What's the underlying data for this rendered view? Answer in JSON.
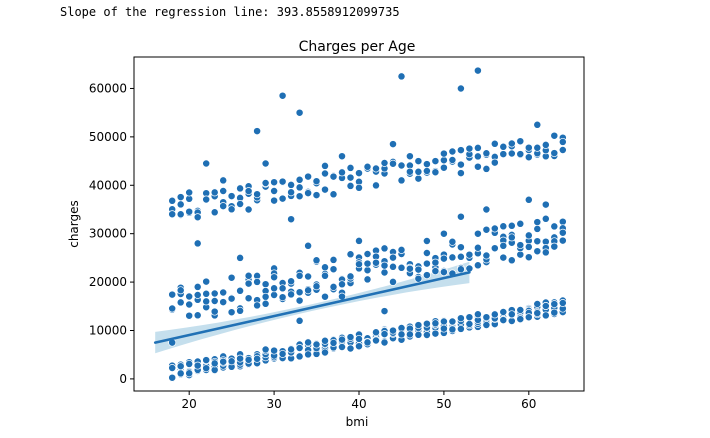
{
  "output": {
    "line": "Slope of the regression line: 393.8558912099735"
  },
  "chart_data": {
    "type": "scatter",
    "title": "Charges per Age",
    "xlabel": "bmi",
    "ylabel": "charges",
    "xlim": [
      13.5,
      66.5
    ],
    "ylim": [
      -2500,
      66500
    ],
    "x_ticks": [
      20,
      30,
      40,
      50,
      60
    ],
    "y_ticks": [
      0,
      10000,
      20000,
      30000,
      40000,
      50000,
      60000
    ],
    "grid": false,
    "colors": {
      "points": "#1f6fb4",
      "point_edge": "#ffffff",
      "line": "#2171b5",
      "ci": "#9ecae1"
    },
    "regression": {
      "slope": 393.8558912099735,
      "x_range": [
        16,
        53
      ],
      "y_start": 7500,
      "y_end": 22000,
      "ci_halfwidth_center": 700,
      "ci_halfwidth_end": 2200
    },
    "bands": [
      {
        "name": "low",
        "x_start": 18,
        "x_end": 64,
        "y_start": 1500,
        "y_end": 15000,
        "spread": 1400
      },
      {
        "name": "mid",
        "x_start": 18,
        "x_end": 64,
        "y_start": 15000,
        "y_end": 30000,
        "spread": 4000
      },
      {
        "name": "high",
        "x_start": 18,
        "x_end": 64,
        "y_start": 35000,
        "y_end": 48500,
        "spread": 2500
      }
    ],
    "outliers": [
      [
        18,
        7500
      ],
      [
        28,
        51200
      ],
      [
        31,
        58500
      ],
      [
        33,
        55000
      ],
      [
        45,
        62500
      ],
      [
        52,
        60000
      ],
      [
        54,
        63700
      ],
      [
        61,
        52500
      ],
      [
        19,
        34000
      ],
      [
        20,
        38500
      ],
      [
        22,
        44500
      ],
      [
        24,
        41000
      ],
      [
        29,
        44500
      ],
      [
        27,
        35000
      ],
      [
        32,
        33000
      ],
      [
        36,
        44000
      ],
      [
        38,
        46000
      ],
      [
        44,
        48500
      ],
      [
        46,
        46000
      ],
      [
        49,
        45000
      ],
      [
        60,
        37000
      ],
      [
        62,
        36000
      ],
      [
        34,
        27500
      ],
      [
        40,
        28500
      ],
      [
        42,
        24000
      ],
      [
        50,
        30000
      ],
      [
        52,
        33500
      ],
      [
        55,
        35000
      ],
      [
        58,
        24500
      ],
      [
        63,
        31500
      ],
      [
        22,
        16000
      ],
      [
        30,
        21000
      ],
      [
        35,
        24500
      ],
      [
        57,
        27500
      ],
      [
        48,
        26000
      ],
      [
        33,
        12000
      ],
      [
        43,
        14000
      ],
      [
        38,
        17000
      ],
      [
        26,
        25000
      ],
      [
        21,
        28000
      ]
    ]
  }
}
